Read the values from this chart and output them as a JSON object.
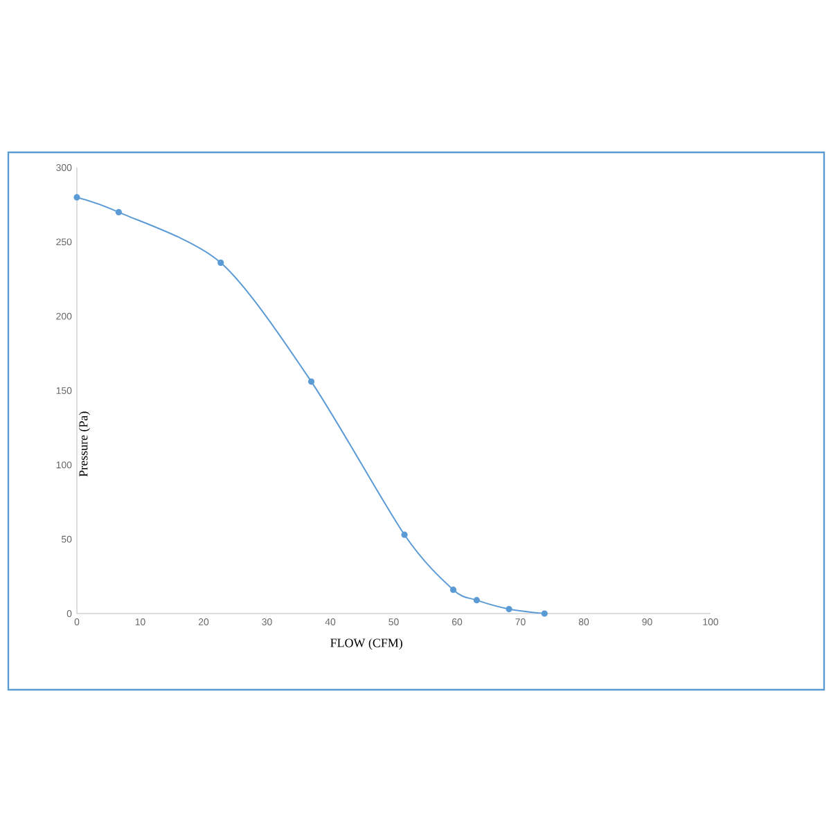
{
  "chart_data": {
    "type": "line",
    "xlabel": "FLOW (CFM)",
    "ylabel": "Pressure (Pa)",
    "x": [
      0,
      6.6,
      22.7,
      37,
      51.7,
      59.4,
      63.1,
      68.2,
      73.8
    ],
    "series": [
      {
        "color": "#5b9bd5",
        "values": [
          280,
          270,
          236,
          156,
          53,
          16,
          9,
          3,
          0
        ]
      }
    ],
    "xlim": [
      0,
      100
    ],
    "xticks": [
      0,
      10,
      20,
      30,
      40,
      50,
      60,
      70,
      80,
      90,
      100
    ],
    "ylim": [
      0,
      300
    ],
    "yticks": [
      0,
      50,
      100,
      150,
      200,
      250,
      300
    ],
    "marker": "circle",
    "line_style": "solid"
  }
}
